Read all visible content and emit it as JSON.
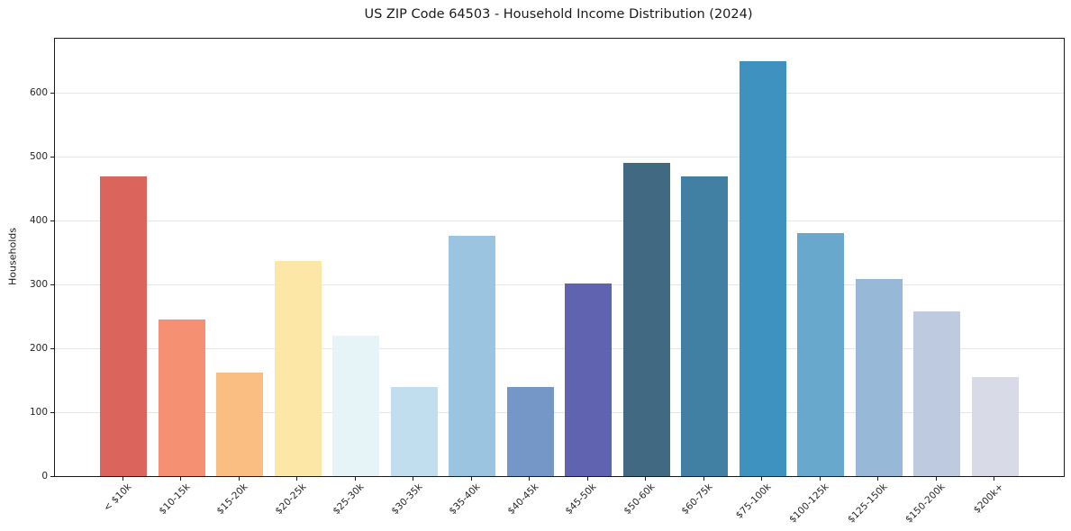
{
  "chart_data": {
    "type": "bar",
    "title": "US ZIP Code 64503 - Household Income Distribution (2024)",
    "xlabel": "",
    "ylabel": "Households",
    "categories": [
      "< $10k",
      "$10-15k",
      "$15-20k",
      "$20-25k",
      "$25-30k",
      "$30-35k",
      "$35-40k",
      "$40-45k",
      "$45-50k",
      "$50-60k",
      "$60-75k",
      "$75-100k",
      "$100-125k",
      "$125-150k",
      "$150-200k",
      "$200k+"
    ],
    "values": [
      470,
      245,
      162,
      337,
      220,
      140,
      377,
      140,
      302,
      490,
      470,
      650,
      380,
      308,
      258,
      155
    ],
    "bar_colors": [
      "#d95b52",
      "#f4896a",
      "#fab97a",
      "#fce5a0",
      "#e6f3f7",
      "#bcdcec",
      "#94c0dd",
      "#6b90c4",
      "#5659ab",
      "#35607a",
      "#35789d",
      "#318bbc",
      "#5ea3c9",
      "#91b5d5",
      "#bac7dd",
      "#d7d8e5"
    ],
    "yticks": [
      0,
      100,
      200,
      300,
      400,
      500,
      600
    ],
    "ylim": [
      0,
      685
    ],
    "legend": "none",
    "grid": "horizontal",
    "colors": {
      "grid": "#e6e6e6",
      "axis": "#1a1a1a",
      "tick_text": "#262626",
      "background": "#ffffff"
    }
  }
}
